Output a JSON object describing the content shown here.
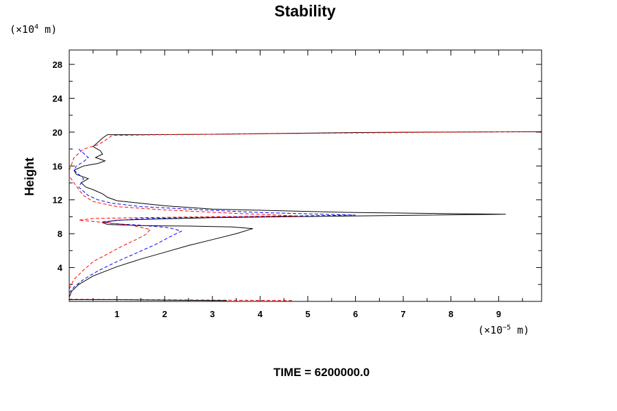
{
  "chart_data": {
    "type": "line",
    "title": "Stability",
    "xlabel": "",
    "ylabel": "Height",
    "x_unit": {
      "prefix": "(×10",
      "exp": "−5",
      "suffix": " m)"
    },
    "y_unit": {
      "prefix": "(×10",
      "exp": "4",
      "suffix": " m)"
    },
    "xlim": [
      0,
      9.9
    ],
    "ylim": [
      0,
      29.7
    ],
    "x_ticks": [
      1,
      2,
      3,
      4,
      5,
      6,
      7,
      8,
      9
    ],
    "x_tick_labels": [
      "1",
      "2",
      "3",
      "4",
      "5",
      "6",
      "7",
      "8",
      "9"
    ],
    "y_ticks": [
      4,
      8,
      12,
      16,
      20,
      24,
      28
    ],
    "y_tick_labels": [
      "4",
      "8",
      "12",
      "16",
      "20",
      "24",
      "28"
    ],
    "footer": "TIME = 6200000.0",
    "series": [
      {
        "name": "black-solid",
        "color": "#000000",
        "dash": "none",
        "points": [
          [
            0,
            0.5
          ],
          [
            0.05,
            1.2
          ],
          [
            0.2,
            2.0
          ],
          [
            0.5,
            3.0
          ],
          [
            1.0,
            4.1
          ],
          [
            1.5,
            5.0
          ],
          [
            2.0,
            5.8
          ],
          [
            2.5,
            6.6
          ],
          [
            3.0,
            7.3
          ],
          [
            3.5,
            8.0
          ],
          [
            3.85,
            8.6
          ],
          [
            3.4,
            8.8
          ],
          [
            2.5,
            8.9
          ],
          [
            1.5,
            8.95
          ],
          [
            0.8,
            9.1
          ],
          [
            0.7,
            9.3
          ],
          [
            1.0,
            9.6
          ],
          [
            3.0,
            9.9
          ],
          [
            6.0,
            10.1
          ],
          [
            9.15,
            10.3
          ],
          [
            6.0,
            10.5
          ],
          [
            3.0,
            10.9
          ],
          [
            2.0,
            11.3
          ],
          [
            1.5,
            11.6
          ],
          [
            1.0,
            11.9
          ],
          [
            0.8,
            12.3
          ],
          [
            0.7,
            12.7
          ],
          [
            0.5,
            13.2
          ],
          [
            0.35,
            13.5
          ],
          [
            0.25,
            14.0
          ],
          [
            0.4,
            14.5
          ],
          [
            0.15,
            15.0
          ],
          [
            0.1,
            15.5
          ],
          [
            0.3,
            16.0
          ],
          [
            0.6,
            16.3
          ],
          [
            0.75,
            16.6
          ],
          [
            0.55,
            17.0
          ],
          [
            0.7,
            17.4
          ],
          [
            0.65,
            17.8
          ],
          [
            0.5,
            18.3
          ],
          [
            0.6,
            18.8
          ],
          [
            0.7,
            19.3
          ],
          [
            0.8,
            19.7
          ],
          [
            1.5,
            19.7
          ],
          [
            3.0,
            19.75
          ],
          [
            4.5,
            19.85
          ],
          [
            6.0,
            19.95
          ],
          [
            7.5,
            20.0
          ],
          [
            9.9,
            20.05
          ]
        ]
      },
      {
        "name": "blue-dashed",
        "color": "#0000ff",
        "dash": "5,3",
        "points": [
          [
            0,
            1.0
          ],
          [
            0.1,
            1.7
          ],
          [
            0.3,
            2.6
          ],
          [
            0.6,
            3.6
          ],
          [
            1.0,
            4.7
          ],
          [
            1.4,
            5.7
          ],
          [
            1.8,
            6.7
          ],
          [
            2.1,
            7.6
          ],
          [
            2.35,
            8.3
          ],
          [
            2.1,
            8.7
          ],
          [
            1.5,
            9.0
          ],
          [
            0.9,
            9.2
          ],
          [
            0.7,
            9.4
          ],
          [
            1.5,
            9.8
          ],
          [
            3.5,
            10.0
          ],
          [
            6.0,
            10.2
          ],
          [
            4.0,
            10.5
          ],
          [
            2.5,
            10.9
          ],
          [
            1.5,
            11.2
          ],
          [
            0.9,
            11.6
          ],
          [
            0.6,
            12.0
          ],
          [
            0.4,
            12.5
          ],
          [
            0.3,
            13.0
          ],
          [
            0.2,
            13.5
          ],
          [
            0.25,
            14.0
          ],
          [
            0.3,
            14.5
          ],
          [
            0.2,
            15.0
          ],
          [
            0.1,
            15.5
          ],
          [
            0.15,
            16.0
          ],
          [
            0.3,
            16.5
          ],
          [
            0.4,
            17.0
          ],
          [
            0.3,
            17.5
          ],
          [
            0.2,
            18.0
          ]
        ]
      },
      {
        "name": "red-dashed",
        "color": "#ff0000",
        "dash": "5,3",
        "points": [
          [
            0,
            1.5
          ],
          [
            0.1,
            2.6
          ],
          [
            0.3,
            3.7
          ],
          [
            0.5,
            4.7
          ],
          [
            0.8,
            5.6
          ],
          [
            1.1,
            6.5
          ],
          [
            1.4,
            7.3
          ],
          [
            1.6,
            7.9
          ],
          [
            1.7,
            8.5
          ],
          [
            1.3,
            9.0
          ],
          [
            0.8,
            9.3
          ],
          [
            0.2,
            9.6
          ],
          [
            0.5,
            9.8
          ],
          [
            1.5,
            9.9
          ],
          [
            3.0,
            10.0
          ],
          [
            4.8,
            10.1
          ],
          [
            3.5,
            10.4
          ],
          [
            2.0,
            10.8
          ],
          [
            1.0,
            11.2
          ],
          [
            0.5,
            11.8
          ],
          [
            0.3,
            12.5
          ],
          [
            0.2,
            13.2
          ],
          [
            0.1,
            14.0
          ],
          [
            0.0,
            14.8
          ],
          [
            0.0,
            15.5
          ],
          [
            0.05,
            16.2
          ],
          [
            0.1,
            17.0
          ],
          [
            0.2,
            17.5
          ],
          [
            0.3,
            18.0
          ],
          [
            0.6,
            18.5
          ],
          [
            0.75,
            19.0
          ],
          [
            0.9,
            19.6
          ],
          [
            2.0,
            19.7
          ],
          [
            4.0,
            19.8
          ],
          [
            6.0,
            19.9
          ],
          [
            8.0,
            20.0
          ],
          [
            9.9,
            20.05
          ]
        ]
      },
      {
        "name": "red-dashed-bottom",
        "color": "#ff0000",
        "dash": "5,3",
        "points": [
          [
            0,
            0.25
          ],
          [
            1.5,
            0.2
          ],
          [
            3.0,
            0.15
          ],
          [
            4.7,
            0.1
          ]
        ]
      },
      {
        "name": "black-solid-bottom",
        "color": "#000000",
        "dash": "none",
        "points": [
          [
            0,
            0.2
          ],
          [
            1.0,
            0.2
          ],
          [
            2.0,
            0.15
          ],
          [
            3.3,
            0.1
          ]
        ]
      }
    ]
  }
}
